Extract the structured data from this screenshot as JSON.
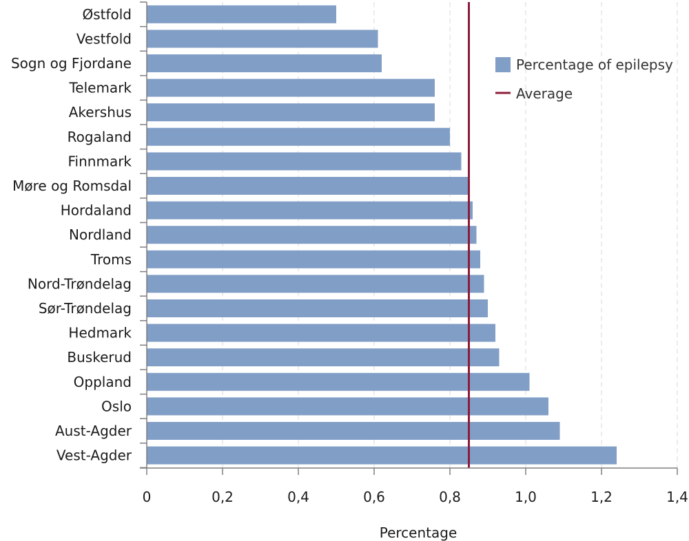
{
  "chart_data": {
    "type": "bar",
    "orientation": "horizontal",
    "categories": [
      "Østfold",
      "Vestfold",
      "Sogn og Fjordane",
      "Telemark",
      "Akershus",
      "Rogaland",
      "Finnmark",
      "Møre og Romsdal",
      "Hordaland",
      "Nordland",
      "Troms",
      "Nord-Trøndelag",
      "Sør-Trøndelag",
      "Hedmark",
      "Buskerud",
      "Oppland",
      "Oslo",
      "Aust-Agder",
      "Vest-Agder"
    ],
    "series": [
      {
        "name": "Percentage of epilepsy",
        "values": [
          0.5,
          0.61,
          0.62,
          0.76,
          0.76,
          0.8,
          0.83,
          0.85,
          0.86,
          0.87,
          0.88,
          0.89,
          0.9,
          0.92,
          0.93,
          1.01,
          1.06,
          1.09,
          1.24
        ]
      }
    ],
    "average": {
      "name": "Average",
      "value": 0.85
    },
    "xlabel": "Percentage",
    "ylabel": "",
    "xlim": [
      0,
      1.4
    ],
    "xticks": [
      0,
      0.2,
      0.4,
      0.6,
      0.8,
      1.0,
      1.2,
      1.4
    ],
    "xtick_labels": [
      "0",
      "0,2",
      "0,4",
      "0,6",
      "0,8",
      "1,0",
      "1,2",
      "1,4"
    ],
    "grid": "vertical dashed",
    "legend_position": "top-right",
    "colors": {
      "bar": "#819ec6",
      "average": "#8c1c3a",
      "grid": "#d9d9d9",
      "axis": "#7f7f7f"
    }
  }
}
